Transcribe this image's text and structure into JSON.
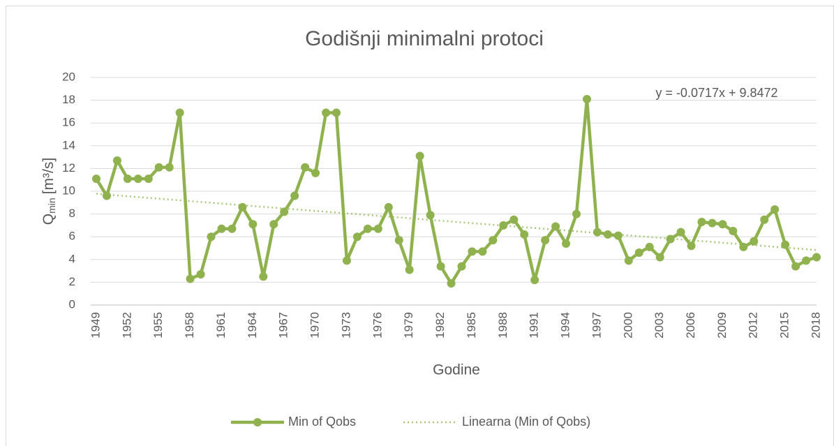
{
  "chart_data": {
    "type": "line",
    "title": "Godišnji minimalni protoci",
    "xlabel": "Godine",
    "ylabel": {
      "symbol": "Q",
      "subscript": "min",
      "unit": "[m³/s]"
    },
    "categories": [
      "1949",
      null,
      null,
      "1952",
      null,
      null,
      "1955",
      null,
      null,
      "1958",
      null,
      null,
      "1961",
      null,
      null,
      "1964",
      null,
      null,
      "1967",
      null,
      null,
      "1970",
      null,
      null,
      "1973",
      null,
      null,
      "1976",
      null,
      null,
      "1979",
      null,
      null,
      "1982",
      null,
      null,
      "1985",
      null,
      null,
      "1988",
      null,
      null,
      "1991",
      null,
      null,
      "1994",
      null,
      null,
      "1997",
      null,
      null,
      "2000",
      null,
      null,
      "2003",
      null,
      null,
      "2006",
      null,
      null,
      "2009",
      null,
      null,
      "2012",
      null,
      null,
      "2015",
      null,
      null,
      "2018"
    ],
    "series": [
      {
        "name": "Min of Qobs",
        "color": "#8fb24f",
        "values": [
          11.1,
          9.6,
          12.7,
          11.1,
          11.1,
          11.1,
          12.1,
          12.1,
          16.9,
          2.3,
          2.7,
          6.0,
          6.7,
          6.7,
          8.6,
          7.1,
          2.5,
          7.1,
          8.2,
          9.6,
          12.1,
          11.6,
          16.9,
          16.9,
          3.9,
          6.0,
          6.7,
          6.7,
          8.6,
          5.7,
          3.1,
          13.1,
          7.9,
          3.4,
          1.9,
          3.4,
          4.7,
          4.7,
          5.7,
          7.0,
          7.5,
          6.2,
          2.2,
          5.7,
          6.9,
          5.4,
          8.0,
          18.1,
          6.4,
          6.2,
          6.1,
          3.9,
          4.6,
          5.1,
          4.2,
          5.8,
          6.4,
          5.2,
          7.3,
          7.2,
          7.1,
          6.5,
          5.1,
          5.6,
          7.5,
          8.4,
          5.3,
          3.4,
          3.9,
          4.2
        ]
      }
    ],
    "trendline": {
      "name": "Linearna (Min of Qobs)",
      "color": "#a9c77a",
      "equation": "y = -0.0717x + 9.8472",
      "slope": -0.0717,
      "intercept": 9.8472
    },
    "ylim": [
      0,
      20
    ],
    "yticks": [
      0,
      2,
      4,
      6,
      8,
      10,
      12,
      14,
      16,
      18,
      20
    ],
    "grid": true,
    "legend": "bottom"
  }
}
